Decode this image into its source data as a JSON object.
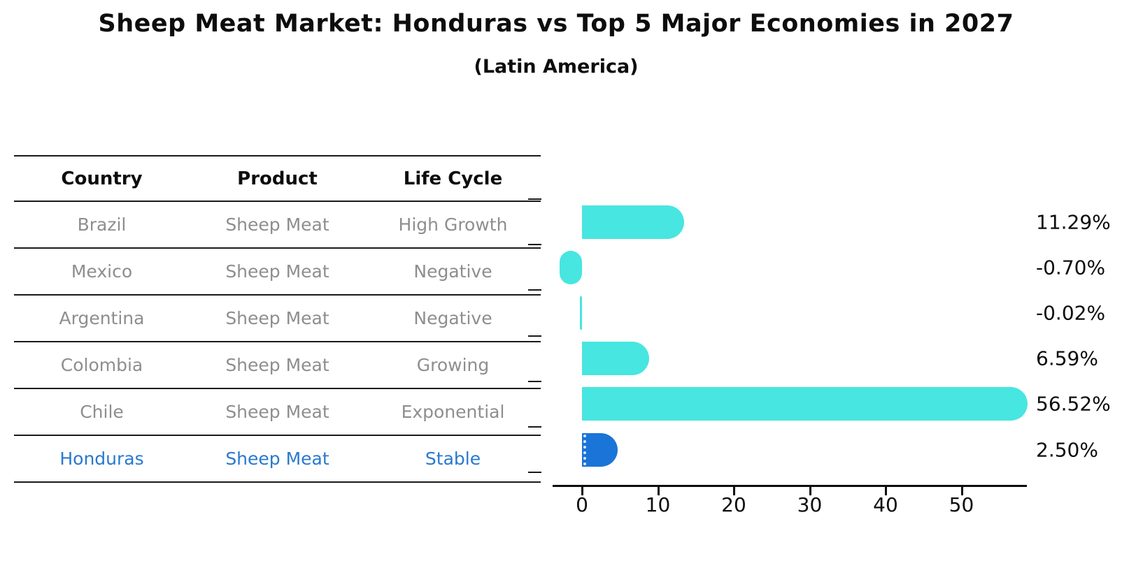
{
  "header": {
    "title": "Sheep Meat Market: Honduras vs Top 5 Major Economies in 2027",
    "subtitle": "(Latin America)"
  },
  "table": {
    "headers": [
      "Country",
      "Product",
      "Life Cycle"
    ],
    "rows": [
      {
        "country": "Brazil",
        "product": "Sheep Meat",
        "life_cycle": "High Growth",
        "highlight": false
      },
      {
        "country": "Mexico",
        "product": "Sheep Meat",
        "life_cycle": "Negative",
        "highlight": false
      },
      {
        "country": "Argentina",
        "product": "Sheep Meat",
        "life_cycle": "Negative",
        "highlight": false
      },
      {
        "country": "Colombia",
        "product": "Sheep Meat",
        "life_cycle": "Growing",
        "highlight": false
      },
      {
        "country": "Chile",
        "product": "Sheep Meat",
        "life_cycle": "Exponential",
        "highlight": false
      },
      {
        "country": "Honduras",
        "product": "Sheep Meat",
        "life_cycle": "Stable",
        "highlight": true
      }
    ]
  },
  "chart_data": {
    "type": "bar",
    "orientation": "horizontal",
    "title": "Sheep Meat Market: Honduras vs Top 5 Major Economies in 2027",
    "subtitle": "(Latin America)",
    "categories": [
      "Brazil",
      "Mexico",
      "Argentina",
      "Colombia",
      "Chile",
      "Honduras"
    ],
    "values": [
      11.29,
      -0.7,
      -0.02,
      6.59,
      56.52,
      2.5
    ],
    "value_labels": [
      "11.29%",
      "-0.70%",
      "-0.02%",
      "6.59%",
      "56.52%",
      "2.50%"
    ],
    "xticks": [
      0,
      10,
      20,
      30,
      40,
      50
    ],
    "xlim": [
      -4,
      58.6
    ],
    "grid": false,
    "legend": false,
    "highlight_index": 5,
    "bar_color": "#47e6e0",
    "highlight_bar_color": "#1b74d8",
    "highlight_text_color": "#2979ce"
  }
}
